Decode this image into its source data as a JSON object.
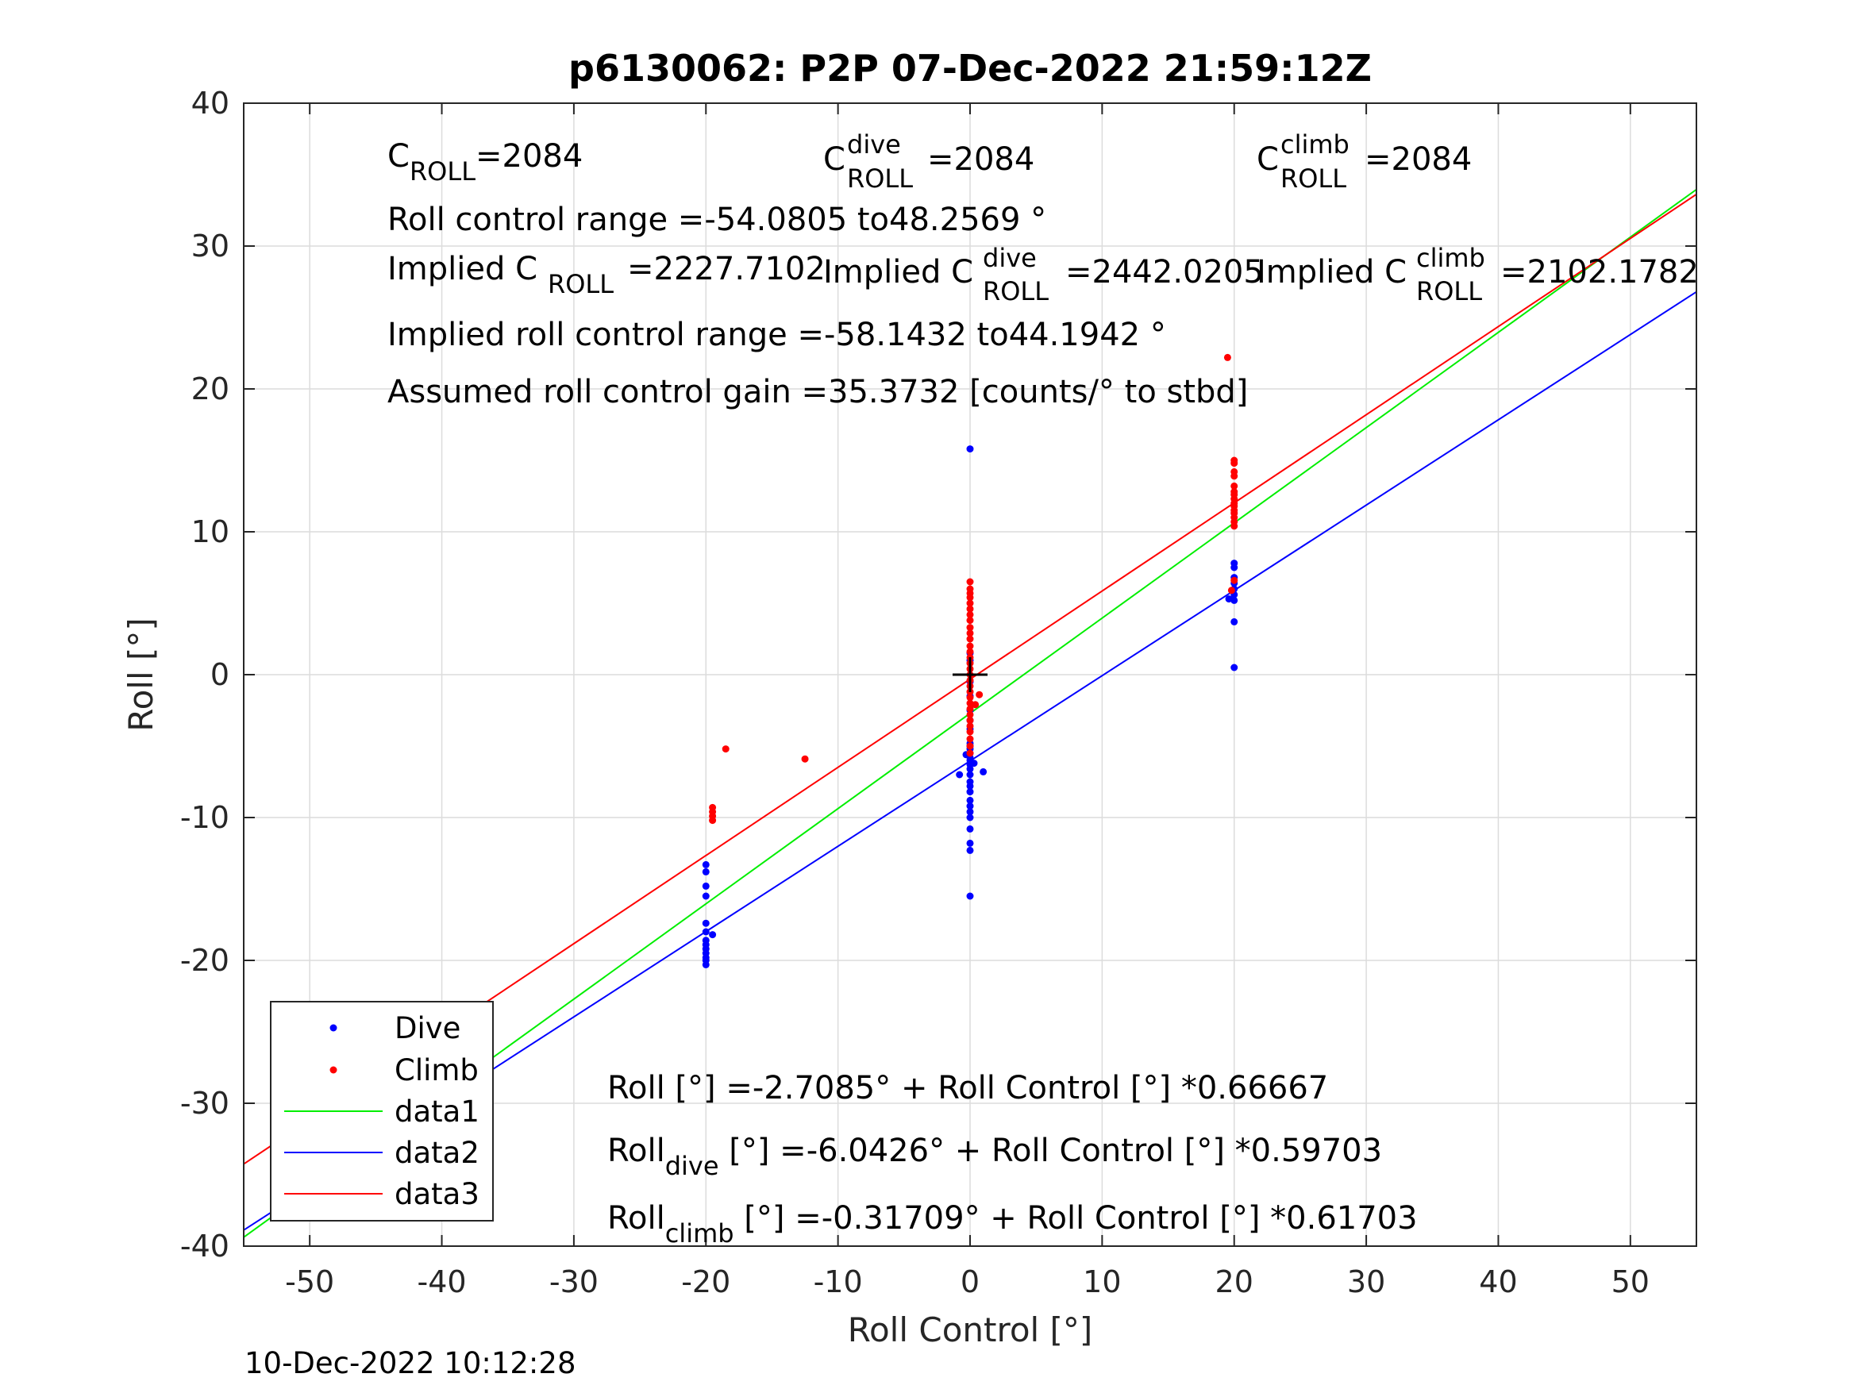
{
  "chart_data": {
    "type": "scatter",
    "title": "p6130062: P2P 07-Dec-2022 21:59:12Z",
    "xlabel": "Roll Control [°]",
    "ylabel": "Roll [°]",
    "xlim": [
      -55,
      55
    ],
    "ylim": [
      -40,
      40
    ],
    "xticks": [
      -50,
      -40,
      -30,
      -20,
      -10,
      0,
      10,
      20,
      30,
      40,
      50
    ],
    "yticks": [
      -40,
      -30,
      -20,
      -10,
      0,
      10,
      20,
      30,
      40
    ],
    "grid": true,
    "legend_position": "bottom-left",
    "center_marker": {
      "x": 0,
      "y": 0
    },
    "series": [
      {
        "name": "Dive",
        "kind": "points",
        "color": "#0000ff",
        "points": [
          [
            -20,
            -13.3
          ],
          [
            -20,
            -13.8
          ],
          [
            -20,
            -14.8
          ],
          [
            -20,
            -15.5
          ],
          [
            -20,
            -17.4
          ],
          [
            -20,
            -18.0
          ],
          [
            -19.5,
            -18.2
          ],
          [
            -20,
            -18.6
          ],
          [
            -20,
            -18.9
          ],
          [
            -20,
            -19.2
          ],
          [
            -20,
            -19.5
          ],
          [
            -20,
            -19.8
          ],
          [
            -20,
            -20.0
          ],
          [
            -20,
            -20.3
          ],
          [
            0,
            15.8
          ],
          [
            0,
            1.5
          ],
          [
            0,
            1.0
          ],
          [
            0,
            -0.5
          ],
          [
            0,
            -1.5
          ],
          [
            0,
            -2.5
          ],
          [
            0,
            -3.2
          ],
          [
            0,
            -3.8
          ],
          [
            0,
            -4.8
          ],
          [
            0,
            -5.0
          ],
          [
            0,
            -5.2
          ],
          [
            0,
            -5.5
          ],
          [
            0,
            -5.8
          ],
          [
            0,
            -6.0
          ],
          [
            0,
            -6.3
          ],
          [
            0,
            -6.6
          ],
          [
            0,
            -7.0
          ],
          [
            0,
            -7.5
          ],
          [
            0,
            -7.8
          ],
          [
            0,
            -8.2
          ],
          [
            0,
            -8.8
          ],
          [
            0,
            -9.2
          ],
          [
            0,
            -9.6
          ],
          [
            0,
            -10.0
          ],
          [
            0,
            -10.8
          ],
          [
            0,
            -11.8
          ],
          [
            0,
            -12.3
          ],
          [
            0,
            -15.5
          ],
          [
            -0.8,
            -7.0
          ],
          [
            1.0,
            -6.8
          ],
          [
            0.3,
            -6.2
          ],
          [
            -0.3,
            -5.6
          ],
          [
            20,
            7.8
          ],
          [
            20,
            7.5
          ],
          [
            20,
            6.8
          ],
          [
            20,
            6.4
          ],
          [
            20,
            6.0
          ],
          [
            20,
            5.6
          ],
          [
            19.6,
            5.3
          ],
          [
            20,
            5.2
          ],
          [
            20,
            3.7
          ],
          [
            20,
            0.5
          ]
        ]
      },
      {
        "name": "Climb",
        "kind": "points",
        "color": "#ff0000",
        "points": [
          [
            -18.5,
            -5.2
          ],
          [
            -12.5,
            -5.9
          ],
          [
            -19.5,
            -9.3
          ],
          [
            -19.5,
            -9.6
          ],
          [
            -19.5,
            -9.9
          ],
          [
            -19.5,
            -10.2
          ],
          [
            0,
            6.5
          ],
          [
            0,
            6.0
          ],
          [
            0,
            5.7
          ],
          [
            0,
            5.4
          ],
          [
            0,
            5.0
          ],
          [
            0,
            4.6
          ],
          [
            0,
            4.2
          ],
          [
            0,
            3.8
          ],
          [
            0,
            3.3
          ],
          [
            0,
            2.9
          ],
          [
            0,
            2.5
          ],
          [
            0,
            2.0
          ],
          [
            0,
            1.6
          ],
          [
            0,
            1.2
          ],
          [
            0,
            0.8
          ],
          [
            0,
            0.4
          ],
          [
            0,
            0.0
          ],
          [
            0,
            -0.4
          ],
          [
            0,
            -0.8
          ],
          [
            0,
            -1.2
          ],
          [
            0,
            -1.6
          ],
          [
            0,
            -2.0
          ],
          [
            0,
            -2.4
          ],
          [
            0,
            -2.8
          ],
          [
            0,
            -3.2
          ],
          [
            0,
            -3.6
          ],
          [
            0,
            -4.0
          ],
          [
            0,
            -4.5
          ],
          [
            0,
            -5.0
          ],
          [
            0,
            -5.5
          ],
          [
            0.7,
            -1.4
          ],
          [
            0.4,
            -2.1
          ],
          [
            19.5,
            22.2
          ],
          [
            20,
            15.0
          ],
          [
            20,
            14.8
          ],
          [
            20,
            14.2
          ],
          [
            20,
            13.9
          ],
          [
            20,
            13.2
          ],
          [
            20,
            12.8
          ],
          [
            20,
            12.6
          ],
          [
            20,
            12.3
          ],
          [
            20,
            12.0
          ],
          [
            20,
            11.8
          ],
          [
            20,
            11.5
          ],
          [
            20,
            11.3
          ],
          [
            20,
            11.0
          ],
          [
            20,
            10.7
          ],
          [
            20,
            10.4
          ],
          [
            20,
            6.6
          ],
          [
            19.8,
            5.9
          ]
        ]
      },
      {
        "name": "data1",
        "kind": "line",
        "color": "#00ee00",
        "intercept": -2.7085,
        "slope": 0.66667
      },
      {
        "name": "data2",
        "kind": "line",
        "color": "#0000ff",
        "intercept": -6.0426,
        "slope": 0.59703
      },
      {
        "name": "data3",
        "kind": "line",
        "color": "#ff0000",
        "intercept": -0.31709,
        "slope": 0.61703
      }
    ]
  },
  "annotations": {
    "c_roll_base": "C",
    "c_roll_sub": "ROLL",
    "c_roll_value": "=2084",
    "c_dive_base": "C",
    "c_dive_sup": "dive",
    "c_dive_sub": "ROLL",
    "c_dive_value": "=2084",
    "c_climb_base": "C",
    "c_climb_sup": "climb",
    "c_climb_sub": "ROLL",
    "c_climb_value": "=2084",
    "roll_control_range": "Roll control range =-54.0805 to48.2569 °",
    "implied_c_roll_prefix": "Implied C",
    "implied_c_roll_sub": "ROLL",
    "implied_c_roll_value": "=2227.7102",
    "implied_c_dive_prefix": "Implied C",
    "implied_c_dive_sup": "dive",
    "implied_c_dive_sub": "ROLL",
    "implied_c_dive_value": "=2442.0205",
    "implied_c_climb_prefix": "Implied C",
    "implied_c_climb_sup": "climb",
    "implied_c_climb_sub": "ROLL",
    "implied_c_climb_value": "=2102.1782",
    "implied_range": "Implied roll control range =-58.1432 to44.1942 °",
    "assumed_gain": "Assumed roll control gain =35.3732 [counts/° to stbd]",
    "fit_all": "Roll [°] =-2.7085° + Roll Control [°] *0.66667",
    "fit_dive_base": "Roll",
    "fit_dive_sub": "dive",
    "fit_dive_rest": " [°] =-6.0426° + Roll Control [°] *0.59703",
    "fit_climb_base": "Roll",
    "fit_climb_sub": "climb",
    "fit_climb_rest": " [°] =-0.31709° + Roll Control [°] *0.61703"
  },
  "footer": {
    "timestamp": "10-Dec-2022 10:12:28"
  }
}
